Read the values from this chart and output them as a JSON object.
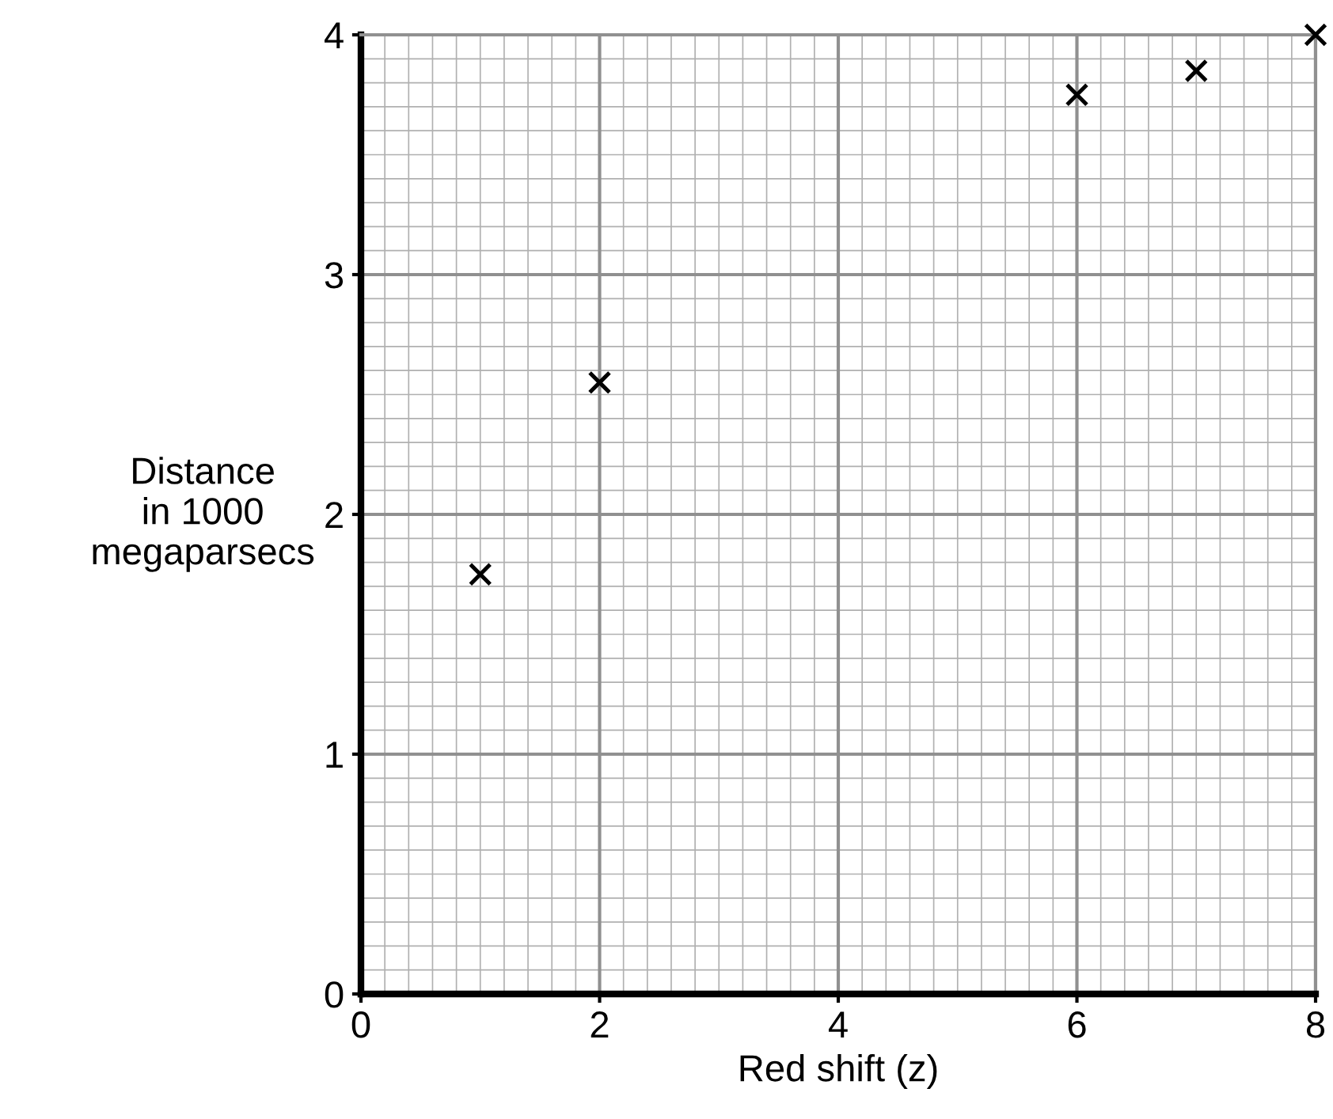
{
  "chart_data": {
    "type": "scatter",
    "xlabel": "Red shift (z)",
    "ylabel": "Distance\nin 1000\nmegaparsecs",
    "x": [
      1,
      2,
      6,
      7,
      8
    ],
    "series": [
      {
        "color": "#000000",
        "values": [
          1.75,
          2.55,
          3.75,
          3.85,
          4.0
        ]
      }
    ],
    "xlim": [
      0,
      8
    ],
    "ylim": [
      0,
      4
    ],
    "xticks": [
      0,
      2,
      4,
      6,
      8
    ],
    "yticks": [
      0,
      1,
      2,
      3,
      4
    ],
    "grid": true,
    "marker": "cross"
  }
}
